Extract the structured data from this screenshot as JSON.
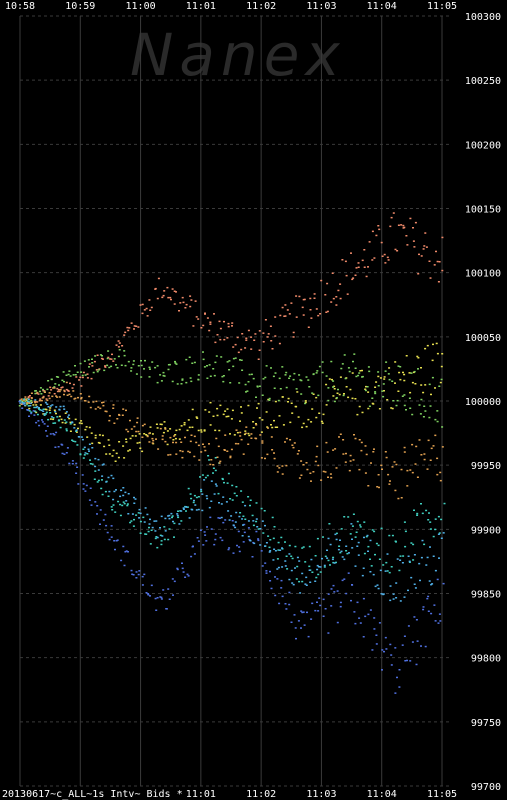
{
  "watermark": "Nanex",
  "footer_label": "20130617~c_ALL~1s Intv~ Bids *",
  "chart_data": {
    "type": "scatter",
    "description_units": "price index scaled so 100000 = starting price",
    "x_ticks_top": [
      "10:58",
      "10:59",
      "11:00",
      "11:01",
      "11:02",
      "11:03",
      "11:04",
      "11:05"
    ],
    "x_ticks_bottom": [
      "11:01",
      "11:02",
      "11:03",
      "11:04",
      "11:05"
    ],
    "y_ticks": [
      "100300",
      "100250",
      "100200",
      "100150",
      "100100",
      "100050",
      "100000",
      "99950",
      "99900",
      "99850",
      "99800",
      "99750",
      "99700"
    ],
    "ylim": [
      99700,
      100300
    ],
    "x_range_minutes": [
      "10:58",
      "11:05"
    ],
    "grid": true,
    "colors": {
      "background": "#000000",
      "grid": "#3a3a3a",
      "tick_text": "#ffffff",
      "watermark": "#2a2a2a"
    },
    "series": [
      {
        "color": "#f08a6a",
        "values": [
          100000,
          100010,
          100040,
          100090,
          100060,
          100045,
          100070,
          100100,
          100130,
          100110
        ]
      },
      {
        "color": "#e8e050",
        "values": [
          100000,
          99985,
          99960,
          99975,
          99990,
          99985,
          99995,
          100005,
          100015,
          100030
        ]
      },
      {
        "color": "#7ed060",
        "values": [
          100000,
          100020,
          100035,
          100020,
          100030,
          100015,
          100010,
          100020,
          100010,
          100000
        ]
      },
      {
        "color": "#40d0c0",
        "values": [
          100000,
          99980,
          99920,
          99890,
          99950,
          99910,
          99870,
          99900,
          99880,
          99920
        ]
      },
      {
        "color": "#5070e0",
        "values": [
          100000,
          99960,
          99890,
          99840,
          99900,
          99890,
          99820,
          99850,
          99790,
          99850
        ]
      },
      {
        "color": "#50b0e8",
        "values": [
          100000,
          99990,
          99930,
          99900,
          99930,
          99900,
          99860,
          99890,
          99860,
          99880
        ]
      },
      {
        "color": "#e0a050",
        "values": [
          100000,
          100010,
          99990,
          99970,
          99960,
          99970,
          99950,
          99960,
          99940,
          99960
        ]
      }
    ]
  }
}
